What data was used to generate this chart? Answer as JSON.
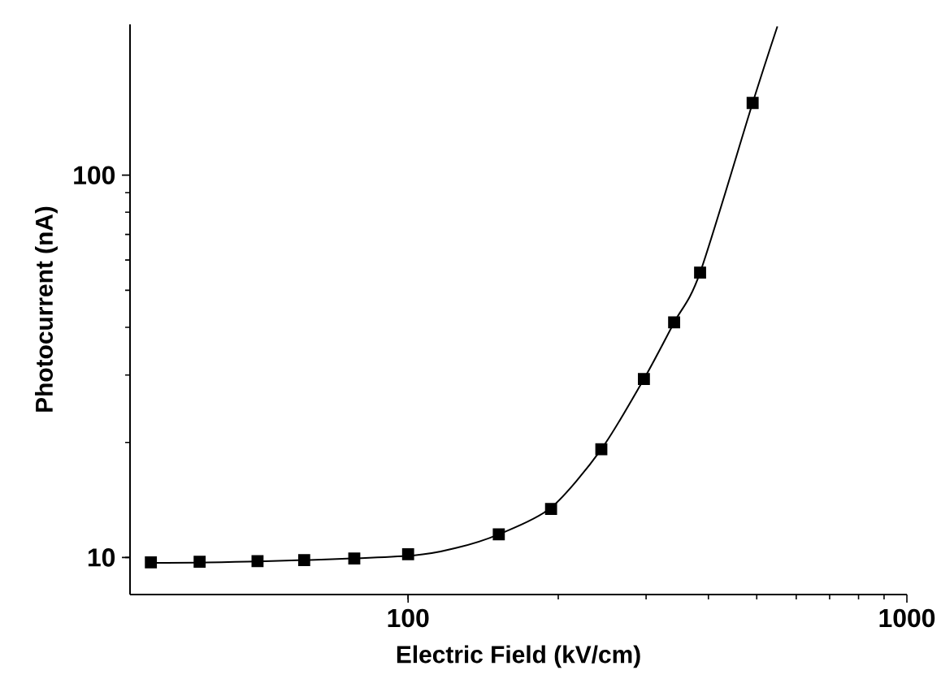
{
  "chart_data": {
    "type": "scatter",
    "xlabel": "Electric Field (kV/cm)",
    "ylabel": "Photocurrent (nA)",
    "log": "xy",
    "xlim": [
      27.7,
      1000
    ],
    "ylim": [
      8,
      248
    ],
    "xticks": [
      100,
      1000
    ],
    "yticks": [
      10,
      100
    ],
    "marker": "square",
    "series": [
      {
        "type": "scatter",
        "color": "#000000",
        "x": [
          30.5,
          38.2,
          49.9,
          61.9,
          78,
          100,
          152,
          193.5,
          244,
          297,
          341.5,
          385,
          490.6
        ],
        "values": [
          9.71,
          9.75,
          9.78,
          9.84,
          9.94,
          10.2,
          11.5,
          13.4,
          19.2,
          29.3,
          41.2,
          55.6,
          154.5
        ]
      },
      {
        "type": "line",
        "color": "#000000",
        "marker": "none",
        "line_style": "solid",
        "x": [
          30.5,
          50,
          100,
          125,
          152,
          193.5,
          244,
          297,
          341.5,
          385,
          490.6,
          550
        ],
        "values": [
          9.68,
          9.76,
          10.1,
          10.6,
          11.5,
          13.5,
          19.2,
          29.3,
          41.2,
          55.6,
          154.5,
          245
        ]
      }
    ]
  }
}
